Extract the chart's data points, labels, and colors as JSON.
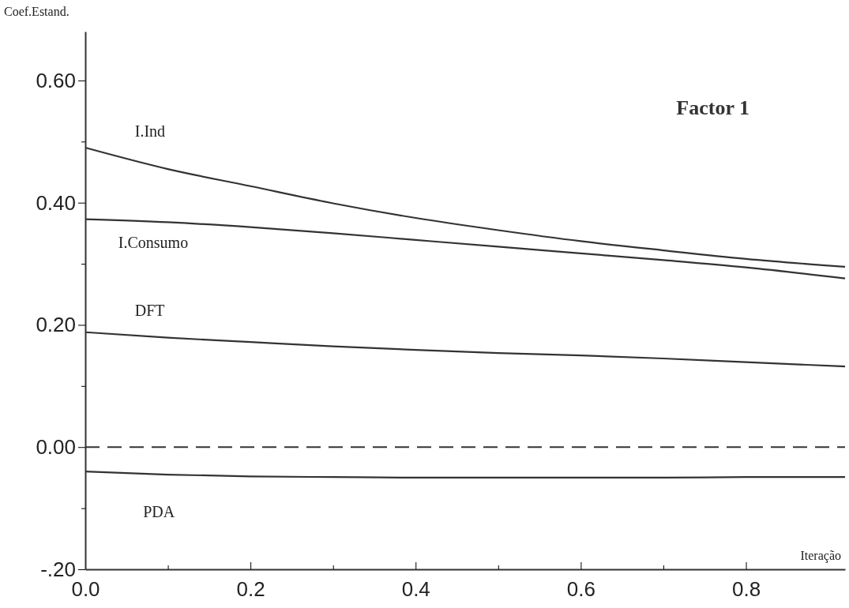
{
  "chart_data": {
    "type": "line",
    "title": "Factor 1",
    "xlabel": "Iteração",
    "ylabel": "Coef.Estand.",
    "x": [
      0,
      0.1,
      0.2,
      0.3,
      0.4,
      0.5,
      0.6,
      0.7,
      0.8,
      0.92
    ],
    "series": [
      {
        "name": "I.Ind",
        "color": "#333333",
        "values": [
          0.49,
          0.455,
          0.427,
          0.399,
          0.375,
          0.355,
          0.337,
          0.322,
          0.308,
          0.295
        ]
      },
      {
        "name": "I.Consumo",
        "color": "#333333",
        "values": [
          0.373,
          0.368,
          0.36,
          0.35,
          0.339,
          0.328,
          0.317,
          0.306,
          0.294,
          0.276
        ]
      },
      {
        "name": "DFT",
        "color": "#333333",
        "values": [
          0.188,
          0.179,
          0.172,
          0.165,
          0.159,
          0.154,
          0.15,
          0.145,
          0.139,
          0.132
        ]
      },
      {
        "name": "PDA",
        "color": "#333333",
        "values": [
          -0.04,
          -0.045,
          -0.048,
          -0.049,
          -0.05,
          -0.05,
          -0.05,
          -0.05,
          -0.049,
          -0.049
        ]
      }
    ],
    "xlim": [
      0,
      0.92
    ],
    "ylim": [
      -0.2,
      0.68
    ],
    "xticks": [
      {
        "value": 0,
        "label": "0.0"
      },
      {
        "value": 0.1,
        "label": null
      },
      {
        "value": 0.2,
        "label": "0.2"
      },
      {
        "value": 0.3,
        "label": null
      },
      {
        "value": 0.4,
        "label": "0.4"
      },
      {
        "value": 0.5,
        "label": null
      },
      {
        "value": 0.6,
        "label": "0.6"
      },
      {
        "value": 0.7,
        "label": null
      },
      {
        "value": 0.8,
        "label": "0.8"
      }
    ],
    "yticks": [
      {
        "value": -0.2,
        "label": "-.20"
      },
      {
        "value": -0.1,
        "label": null
      },
      {
        "value": 0,
        "label": "0.00"
      },
      {
        "value": 0.1,
        "label": null
      },
      {
        "value": 0.2,
        "label": "0.20"
      },
      {
        "value": 0.3,
        "label": null
      },
      {
        "value": 0.4,
        "label": "0.40"
      },
      {
        "value": 0.5,
        "label": null
      },
      {
        "value": 0.6,
        "label": "0.60"
      }
    ],
    "ref_lines": [
      {
        "axis": "y",
        "value": 0,
        "line_style": "dashed",
        "color": "#333333"
      }
    ],
    "line_style": "solid"
  }
}
